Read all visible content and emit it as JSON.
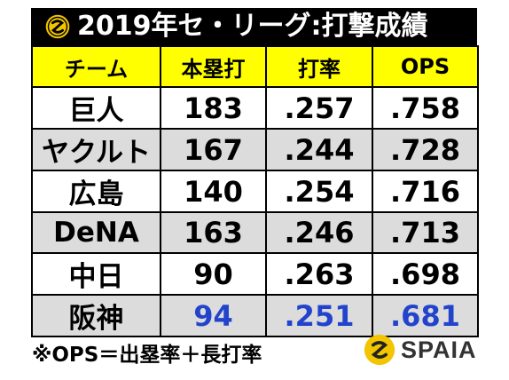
{
  "title": "2019年セ・リーグ:打撃成績",
  "table": {
    "headers": [
      "チーム",
      "本塁打",
      "打率",
      "OPS"
    ],
    "rows": [
      {
        "team": "巨人",
        "hr": "183",
        "avg": ".257",
        "ops": ".758"
      },
      {
        "team": "ヤクルト",
        "hr": "167",
        "avg": ".244",
        "ops": ".728"
      },
      {
        "team": "広島",
        "hr": "140",
        "avg": ".254",
        "ops": ".716"
      },
      {
        "team": "DeNA",
        "hr": "163",
        "avg": ".246",
        "ops": ".713"
      },
      {
        "team": "中日",
        "hr": "90",
        "avg": ".263",
        "ops": ".698"
      },
      {
        "team": "阪神",
        "hr": "94",
        "avg": ".251",
        "ops": ".681"
      }
    ]
  },
  "footnote": "※OPS＝出塁率＋長打率",
  "brand": "SPAIA",
  "colors": {
    "header_bg": "#ffff00",
    "title_bg": "#000000",
    "stripe": "#dcdcdc",
    "highlight_text": "#2244cc",
    "logo_yellow": "#f2c500"
  },
  "icons": {
    "title_logo": "spaia-logo-icon",
    "brand_logo": "spaia-logo-icon"
  }
}
